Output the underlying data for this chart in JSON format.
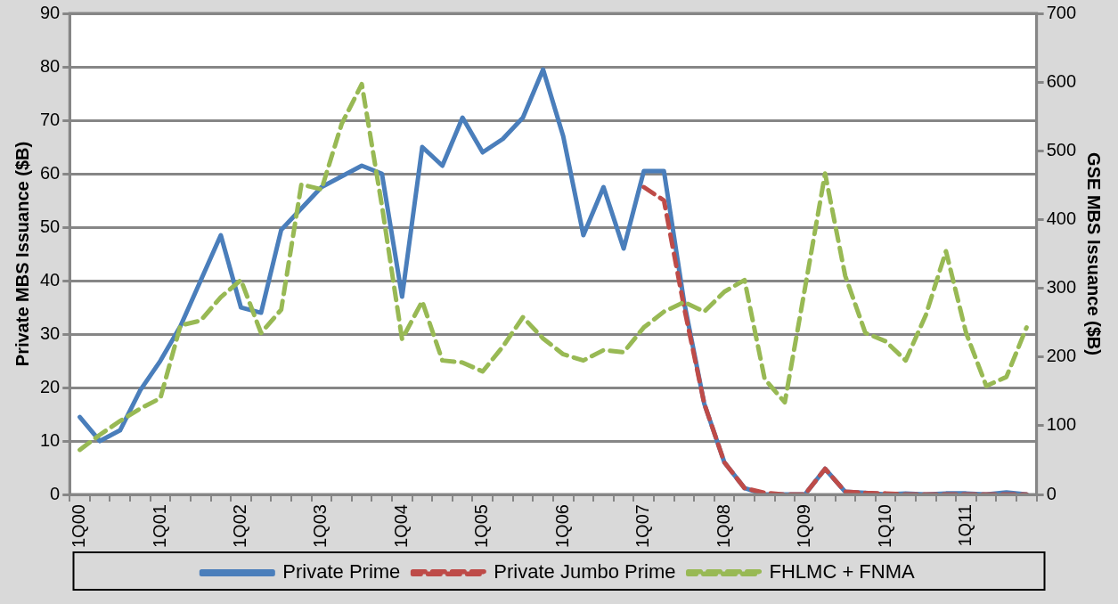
{
  "chart_data": {
    "type": "line",
    "categories": [
      "1Q00",
      null,
      null,
      null,
      "1Q01",
      null,
      null,
      null,
      "1Q02",
      null,
      null,
      null,
      "1Q03",
      null,
      null,
      null,
      "1Q04",
      null,
      null,
      null,
      "1Q05",
      null,
      null,
      null,
      "1Q06",
      null,
      null,
      null,
      "1Q07",
      null,
      null,
      null,
      "1Q08",
      null,
      null,
      null,
      "1Q09",
      null,
      null,
      null,
      "1Q10",
      null,
      null,
      null,
      "1Q11",
      null,
      null,
      null
    ],
    "series": [
      {
        "name": "Private Prime",
        "color": "#4a7ebb",
        "line_style": "solid",
        "axis": "y",
        "values": [
          14.5,
          10,
          12,
          19.5,
          25,
          31.5,
          40,
          48.5,
          35,
          34,
          49.5,
          53.5,
          57.5,
          59.5,
          61.5,
          60,
          37,
          65,
          61.5,
          70.5,
          64,
          66.5,
          70.5,
          79.5,
          67,
          48.5,
          57.5,
          46,
          60.5,
          60.5,
          36,
          17,
          6,
          1.2,
          0,
          0,
          0,
          4.8,
          0.5,
          0.3,
          0,
          0.2,
          0,
          0.2,
          0.2,
          0,
          0.4,
          0
        ]
      },
      {
        "name": "Private Jumbo Prime",
        "color": "#be4b48",
        "line_style": "dashed",
        "axis": "y",
        "values": [
          null,
          null,
          null,
          null,
          null,
          null,
          null,
          null,
          null,
          null,
          null,
          null,
          null,
          null,
          null,
          null,
          null,
          null,
          null,
          null,
          null,
          null,
          null,
          null,
          null,
          null,
          null,
          null,
          57.5,
          55,
          35,
          17,
          6,
          1.2,
          0.3,
          0,
          0,
          4.8,
          0.5,
          0.3,
          0.2,
          0,
          0,
          0,
          0,
          0,
          0,
          0
        ]
      },
      {
        "name": "FHLMC + FNMA",
        "color": "#98b954",
        "line_style": "dashed",
        "axis": "y2",
        "values": [
          65,
          87,
          107,
          125,
          140,
          246,
          253,
          287,
          312,
          235,
          269,
          451,
          444,
          539,
          597,
          420,
          226,
          281,
          195,
          192,
          179,
          215,
          258,
          227,
          204,
          195,
          210,
          207,
          243,
          266,
          280,
          266,
          295,
          312,
          168,
          134,
          300,
          467,
          318,
          235,
          223,
          195,
          261,
          354,
          235,
          158,
          171,
          243
        ]
      }
    ],
    "ylabel": "Private MBS Issuance ($B)",
    "y2label": "GSE MBS Issuance ($B)",
    "ylim": [
      0,
      90
    ],
    "yticks": [
      0,
      10,
      20,
      30,
      40,
      50,
      60,
      70,
      80,
      90
    ],
    "y2lim": [
      0,
      700
    ],
    "y2ticks": [
      0,
      100,
      200,
      300,
      400,
      500,
      600,
      700
    ],
    "grid": "y",
    "legend": "bottom",
    "marker": "none"
  }
}
